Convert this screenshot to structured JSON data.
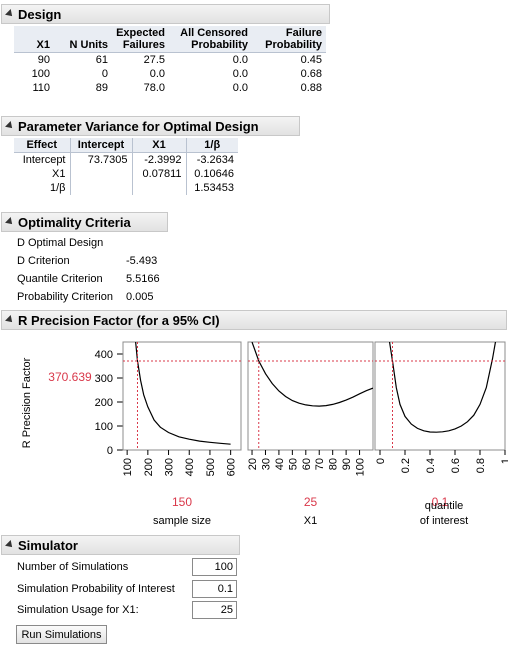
{
  "design": {
    "title": "Design",
    "columns": [
      "X1",
      "N Units",
      "Expected Failures",
      "All Censored Probability",
      "Failure Probability"
    ],
    "column_lines": [
      [
        "",
        "X1"
      ],
      [
        "",
        "N Units"
      ],
      [
        "Expected",
        "Failures"
      ],
      [
        "All Censored",
        "Probability"
      ],
      [
        "Failure",
        "Probability"
      ]
    ],
    "rows": [
      [
        "90",
        "61",
        "27.5",
        "0.0",
        "0.45"
      ],
      [
        "100",
        "0",
        "0.0",
        "0.0",
        "0.68"
      ],
      [
        "110",
        "89",
        "78.0",
        "0.0",
        "0.88"
      ]
    ]
  },
  "param_variance": {
    "title": "Parameter Variance for Optimal Design",
    "columns": [
      "Effect",
      "Intercept",
      "X1",
      "1/β"
    ],
    "rows": [
      [
        "Intercept",
        "73.7305",
        "-2.3992",
        "-3.2634"
      ],
      [
        "X1",
        "",
        "0.07811",
        "0.10646"
      ],
      [
        "1/β",
        "",
        "",
        "1.53453"
      ]
    ]
  },
  "optimality": {
    "title": "Optimality Criteria",
    "design_type": "D Optimal Design",
    "criteria": [
      {
        "label": "D Criterion",
        "value": "-5.493"
      },
      {
        "label": "Quantile Criterion",
        "value": "5.5166"
      },
      {
        "label": "Probability Criterion",
        "value": "0.005"
      }
    ]
  },
  "precision": {
    "title": "R Precision Factor (for a 95% CI)",
    "ylabel": "R Precision Factor",
    "current_y": "370.639",
    "accent": "#d9384a",
    "curve_color": "#000000"
  },
  "chart_data": {
    "type": "line",
    "ylabel": "R Precision Factor",
    "ylim": [
      0,
      450
    ],
    "yticks": [
      "0",
      "100",
      "200",
      "300",
      "400"
    ],
    "current_y": 370.639,
    "panels": [
      {
        "xlabel": "sample size",
        "current_x": "150",
        "xlim": [
          80,
          650
        ],
        "xticks": [
          "100",
          "200",
          "300",
          "400",
          "500",
          "600"
        ],
        "x": [
          140,
          150,
          165,
          180,
          200,
          230,
          260,
          300,
          350,
          400,
          450,
          500,
          550,
          600
        ],
        "y": [
          460,
          371,
          290,
          230,
          180,
          125,
          95,
          73,
          55,
          45,
          37,
          32,
          28,
          24
        ]
      },
      {
        "xlabel": "X1",
        "current_x": "25",
        "xlim": [
          17,
          110
        ],
        "xticks": [
          "20",
          "30",
          "40",
          "50",
          "60",
          "70",
          "80",
          "90",
          "100"
        ],
        "x": [
          20,
          25,
          30,
          35,
          40,
          45,
          50,
          55,
          60,
          65,
          70,
          75,
          80,
          85,
          90,
          95,
          100,
          105,
          110
        ],
        "y": [
          450,
          371,
          318,
          277,
          246,
          223,
          206,
          195,
          188,
          184,
          183,
          185,
          190,
          198,
          208,
          220,
          234,
          247,
          258
        ]
      },
      {
        "xlabel": "quantile of interest",
        "xlabel_lines": [
          "quantile",
          "of interest"
        ],
        "current_x": "0.1",
        "xlim": [
          -0.04,
          1.0
        ],
        "xticks": [
          "0",
          "0.2",
          "0.4",
          "0.6",
          "0.8",
          "1"
        ],
        "x": [
          0.07,
          0.1,
          0.13,
          0.16,
          0.2,
          0.25,
          0.3,
          0.35,
          0.4,
          0.45,
          0.5,
          0.55,
          0.6,
          0.65,
          0.7,
          0.75,
          0.8,
          0.85,
          0.9,
          0.93
        ],
        "y": [
          470,
          371,
          260,
          190,
          140,
          108,
          90,
          80,
          75,
          74,
          76,
          80,
          88,
          100,
          118,
          145,
          190,
          260,
          380,
          470
        ]
      }
    ]
  },
  "simulator": {
    "title": "Simulator",
    "fields": [
      {
        "label": "Number of Simulations",
        "value": "100"
      },
      {
        "label": "Simulation Probability of Interest",
        "value": "0.1"
      },
      {
        "label": "Simulation Usage for X1:",
        "value": "25"
      }
    ],
    "run_label": "Run Simulations"
  }
}
